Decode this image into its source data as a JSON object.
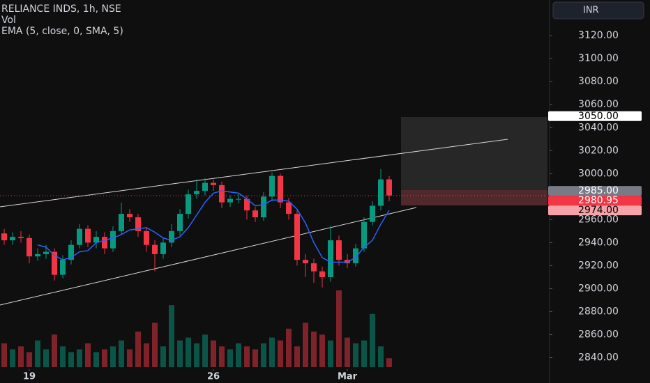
{
  "header": {
    "title": "RELIANCE INDS, 1h, NSE",
    "volume_label": "Vol",
    "indicator_label": "EMA (5, close, 0, SMA, 5)",
    "currency": "INR"
  },
  "chart_data": {
    "type": "candlestick",
    "open": [
      2948,
      2942,
      2945,
      2944,
      2928,
      2930,
      2932,
      2912,
      2925,
      2938,
      2952,
      2940,
      2945,
      2935,
      2950,
      2965,
      2962,
      2950,
      2938,
      2930,
      2940,
      2950,
      2965,
      2982,
      2985,
      2992,
      2990,
      2975,
      2978,
      2978,
      2968,
      2962,
      2980,
      2998,
      2975,
      2965,
      2925,
      2922,
      2915,
      2910,
      2942,
      2925,
      2922,
      2935,
      2958,
      2972,
      2995
    ],
    "high": [
      2952,
      2949,
      2950,
      2947,
      2935,
      2938,
      2935,
      2929,
      2942,
      2956,
      2955,
      2950,
      2949,
      2954,
      2975,
      2969,
      2965,
      2953,
      2942,
      2944,
      2956,
      2969,
      2986,
      2995,
      2996,
      2995,
      2993,
      2981,
      2982,
      2981,
      2971,
      2984,
      3001,
      3000,
      2979,
      2968,
      2930,
      2926,
      2919,
      2955,
      2946,
      2930,
      2939,
      2962,
      2976,
      3004,
      2998
    ],
    "low": [
      2938,
      2938,
      2940,
      2922,
      2924,
      2926,
      2907,
      2909,
      2921,
      2935,
      2936,
      2935,
      2930,
      2932,
      2947,
      2958,
      2945,
      2932,
      2915,
      2926,
      2936,
      2946,
      2961,
      2978,
      2981,
      2985,
      2970,
      2971,
      2974,
      2960,
      2958,
      2959,
      2976,
      2970,
      2960,
      2920,
      2910,
      2905,
      2901,
      2906,
      2920,
      2918,
      2919,
      2932,
      2955,
      2968,
      2976
    ],
    "close": [
      2942,
      2945,
      2944,
      2928,
      2930,
      2932,
      2912,
      2925,
      2938,
      2952,
      2940,
      2945,
      2935,
      2950,
      2965,
      2962,
      2950,
      2938,
      2930,
      2940,
      2950,
      2965,
      2982,
      2985,
      2992,
      2990,
      2975,
      2978,
      2978,
      2968,
      2962,
      2980,
      2998,
      2975,
      2965,
      2925,
      2922,
      2915,
      2910,
      2942,
      2925,
      2922,
      2935,
      2958,
      2972,
      2995,
      2981
    ],
    "volume": [
      80,
      60,
      70,
      50,
      90,
      60,
      110,
      70,
      50,
      60,
      80,
      50,
      60,
      70,
      90,
      60,
      120,
      80,
      150,
      70,
      210,
      90,
      100,
      80,
      110,
      90,
      70,
      60,
      80,
      70,
      60,
      80,
      100,
      90,
      130,
      70,
      150,
      120,
      110,
      90,
      260,
      100,
      80,
      90,
      180,
      70,
      30
    ],
    "ema": [
      null,
      null,
      null,
      null,
      2938,
      2936,
      2929,
      2925,
      2927,
      2932,
      2933,
      2940,
      2942,
      2944,
      2947,
      2951,
      2952,
      2953,
      2949,
      2944,
      2942,
      2945,
      2953,
      2964,
      2975,
      2983,
      2985,
      2984,
      2983,
      2978,
      2972,
      2973,
      2977,
      2977,
      2976,
      2969,
      2957,
      2940,
      2927,
      2923,
      2923,
      2923,
      2927,
      2936,
      2942,
      2956,
      2968
    ],
    "up_color": "#089981",
    "down_color": "#f23645",
    "ema_color": "#2962ff",
    "ylim": [
      2830,
      3151
    ],
    "yticks": [
      {
        "value": 2840,
        "label": "2840.00"
      },
      {
        "value": 2860,
        "label": "2860.00"
      },
      {
        "value": 2880,
        "label": "2880.00"
      },
      {
        "value": 2900,
        "label": "2900.00"
      },
      {
        "value": 2920,
        "label": "2920.00"
      },
      {
        "value": 2940,
        "label": "2940.00"
      },
      {
        "value": 2960,
        "label": "2960.00"
      },
      {
        "value": 2980,
        "label": "2980.00"
      },
      {
        "value": 3000,
        "label": "3000.00"
      },
      {
        "value": 3020,
        "label": "3020.00"
      },
      {
        "value": 3040,
        "label": "3040.00"
      },
      {
        "value": 3060,
        "label": "3060.00"
      },
      {
        "value": 3080,
        "label": "3080.00"
      },
      {
        "value": 3100,
        "label": "3100.00"
      },
      {
        "value": 3120,
        "label": "3120.00"
      }
    ],
    "xticks": [
      {
        "value": 3,
        "label": "19"
      },
      {
        "value": 25,
        "label": "26"
      },
      {
        "value": 41,
        "label": "Mar"
      }
    ],
    "price_tags": [
      {
        "value": 3050,
        "label": "3050.00",
        "color": "#ffffff"
      },
      {
        "value": 2985,
        "label": "2985.00",
        "color": "#787b86"
      },
      {
        "value": 2980.95,
        "label": "2980.95",
        "color": "#f23645"
      },
      {
        "value": 2974,
        "label": "2974.00",
        "color": "#f7a1a8"
      }
    ]
  }
}
